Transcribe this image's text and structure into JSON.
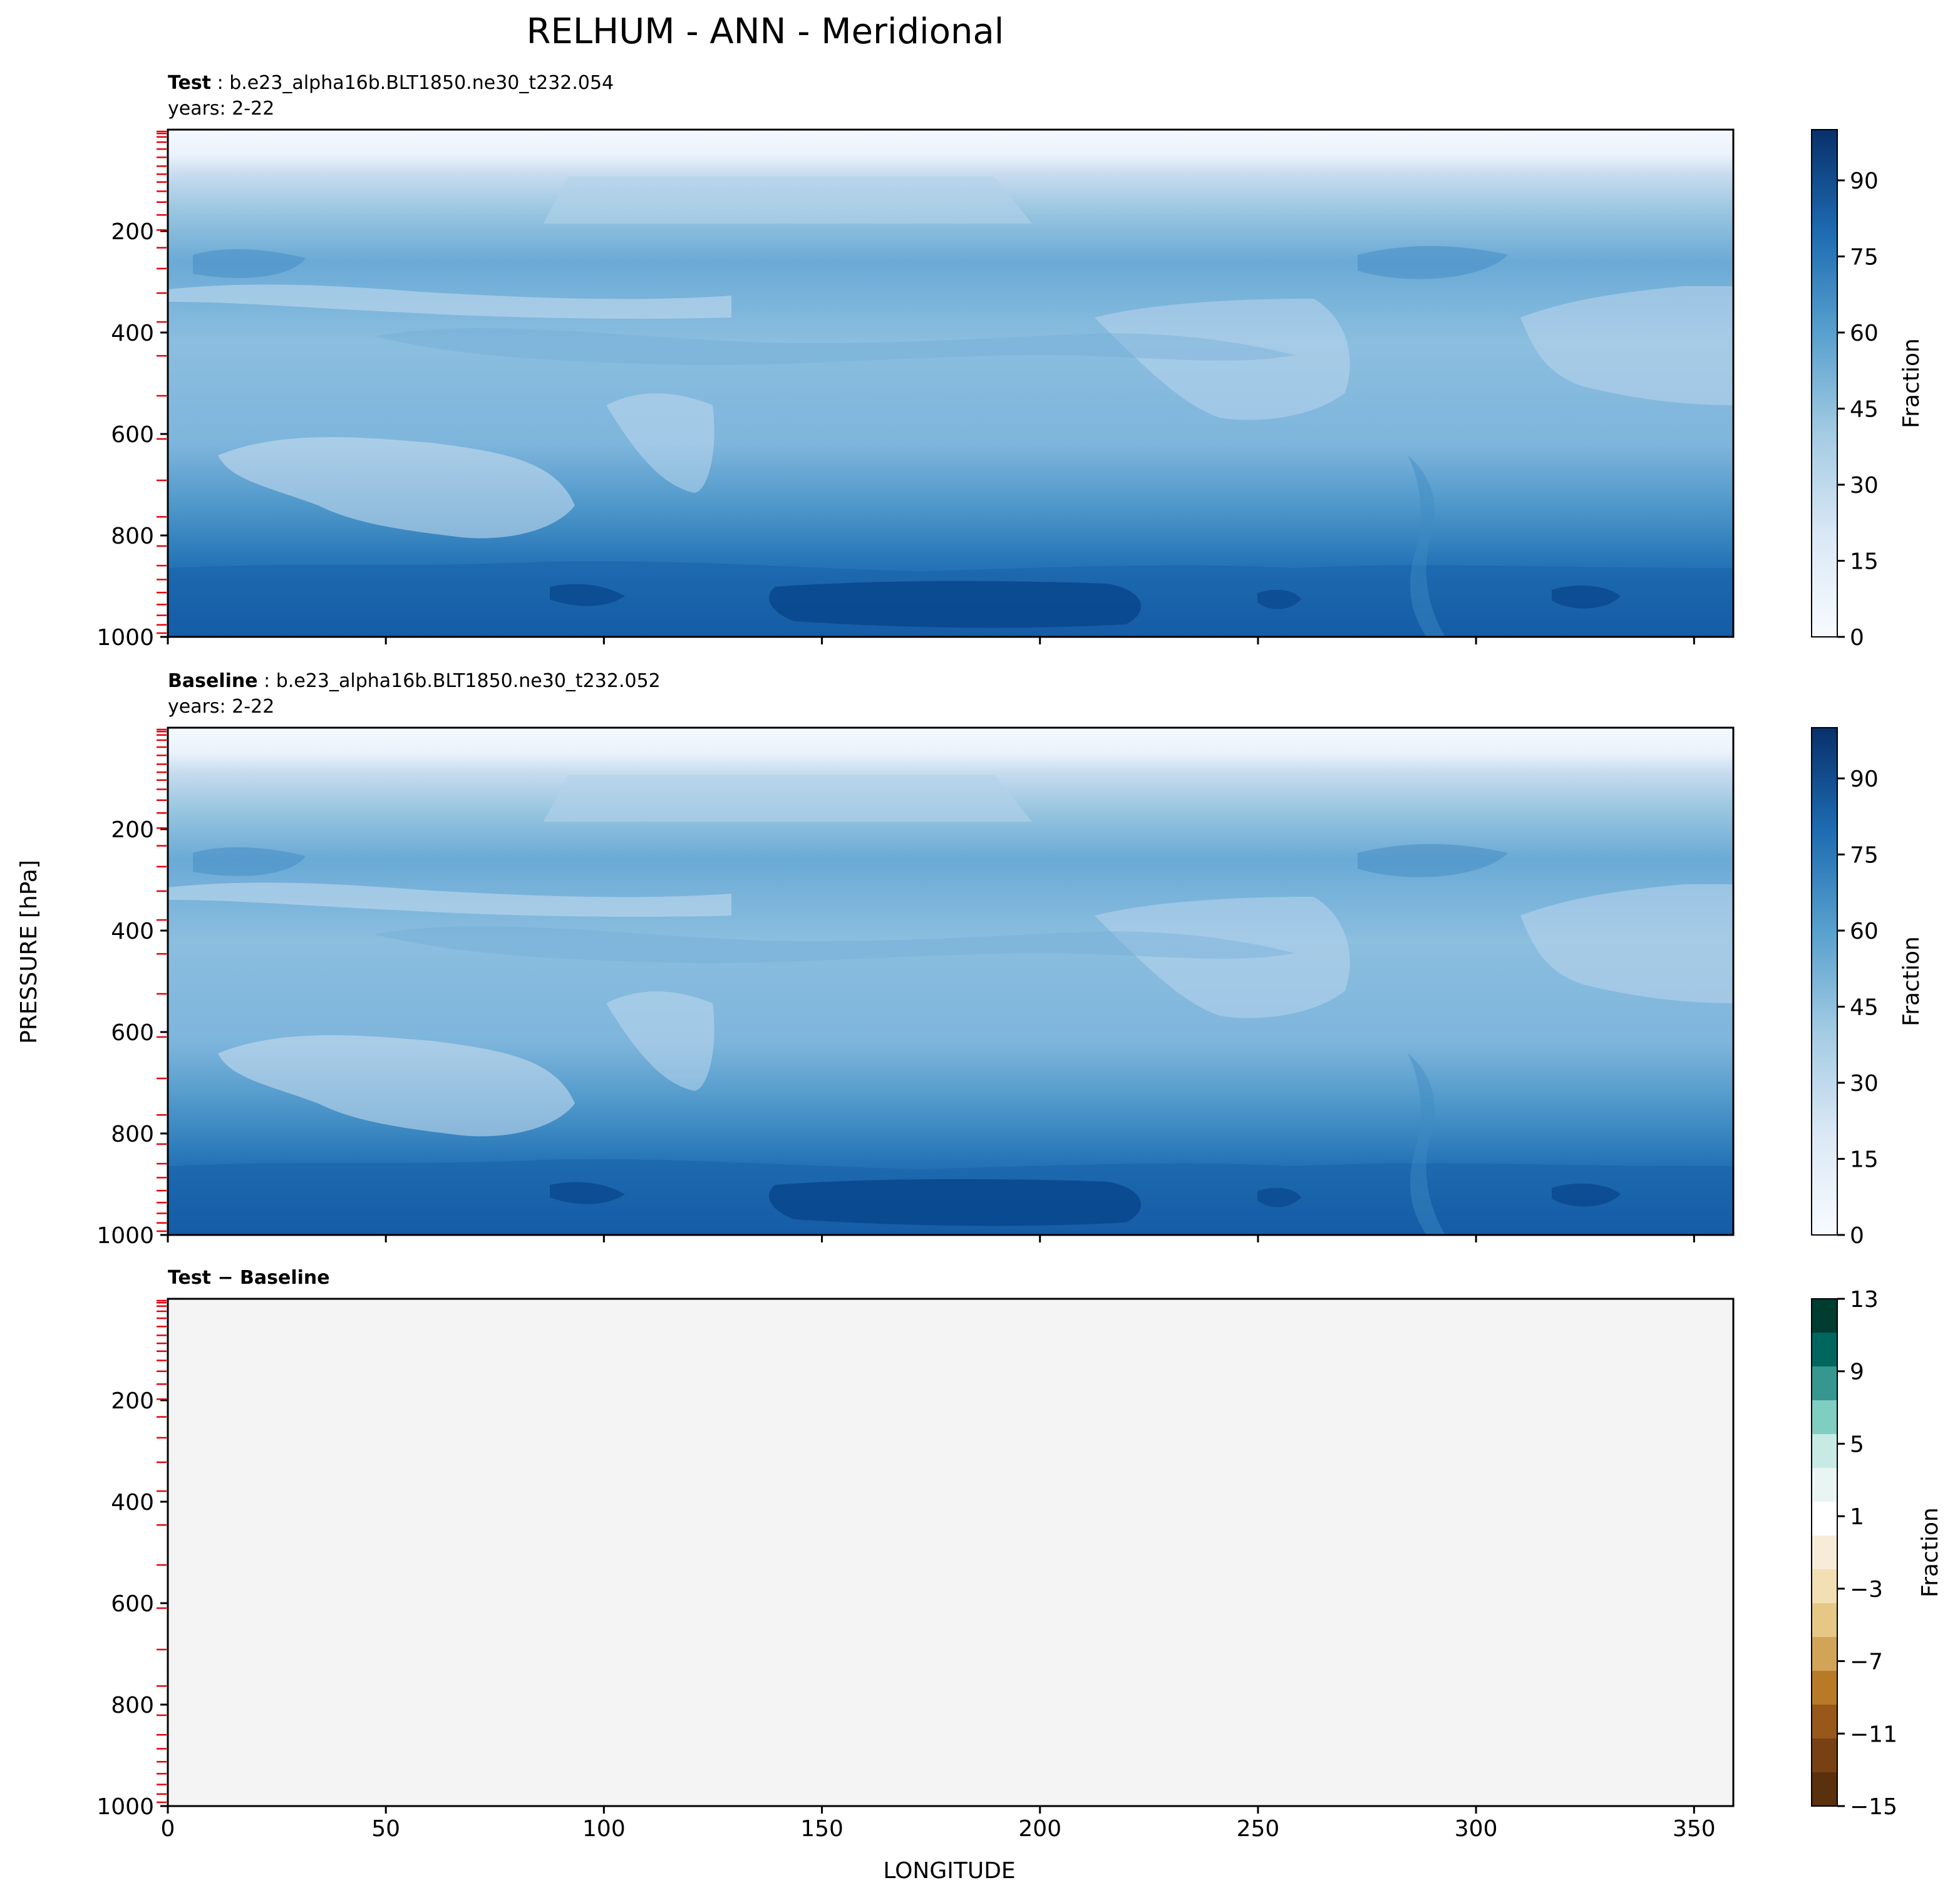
{
  "figure": {
    "title": "RELHUM - ANN - Meridional",
    "xlabel": "LONGITUDE",
    "ylabel": "PRESSURE [hPa]"
  },
  "chart_data": [
    {
      "type": "heatmap",
      "panel": "test",
      "title_bold": "Test",
      "title_rest": ": b.e23_alpha16b.BLT1850.ne30_t232.054",
      "subtitle": "years: 2-22",
      "xlim": [
        0,
        359
      ],
      "ylim": [
        1000,
        0
      ],
      "yticks": [
        "200",
        "400",
        "600",
        "800",
        "1000"
      ],
      "xticks_labeled": false,
      "colorbar": {
        "label": "Fraction",
        "ticks": [
          "0",
          "15",
          "30",
          "45",
          "60",
          "75",
          "90"
        ],
        "range": [
          0,
          100
        ],
        "colormap": "Blues"
      }
    },
    {
      "type": "heatmap",
      "panel": "baseline",
      "title_bold": "Baseline",
      "title_rest": ": b.e23_alpha16b.BLT1850.ne30_t232.052",
      "subtitle": "years: 2-22",
      "xlim": [
        0,
        359
      ],
      "ylim": [
        1000,
        0
      ],
      "yticks": [
        "200",
        "400",
        "600",
        "800",
        "1000"
      ],
      "xticks_labeled": false,
      "colorbar": {
        "label": "Fraction",
        "ticks": [
          "0",
          "15",
          "30",
          "45",
          "60",
          "75",
          "90"
        ],
        "range": [
          0,
          100
        ],
        "colormap": "Blues"
      }
    },
    {
      "type": "heatmap",
      "panel": "difference",
      "title_bold": "Test − Baseline",
      "subtitle": "",
      "xlim": [
        0,
        359
      ],
      "ylim": [
        1000,
        0
      ],
      "yticks": [
        "200",
        "400",
        "600",
        "800",
        "1000"
      ],
      "xticks": [
        "0",
        "50",
        "100",
        "150",
        "200",
        "250",
        "300",
        "350"
      ],
      "uniform_fill": "#f3f4f3",
      "colorbar": {
        "label": "Fraction",
        "ticks": [
          "13",
          "9",
          "5",
          "1",
          "−3",
          "−7",
          "−11",
          "−15"
        ],
        "colors": [
          "#003c30",
          "#01665e",
          "#35978f",
          "#80cdc1",
          "#c7eae5",
          "#e9f5f3",
          "#ffffff",
          "#f6ecd8",
          "#f2dfb4",
          "#e6c786",
          "#d1a457",
          "#b97a28",
          "#98581a",
          "#784114",
          "#5b300c"
        ],
        "colormap": "BrBG"
      }
    }
  ],
  "colors": {
    "blues": [
      "#f7fbff",
      "#e8f1fa",
      "#dae8f5",
      "#cbdef0",
      "#b9d6ea",
      "#a3cbe3",
      "#8abde0",
      "#6fadd6",
      "#57a0ce",
      "#4191c6",
      "#2f7ebc",
      "#1d6bb1",
      "#0d58a1",
      "#084a91",
      "#08306b"
    ],
    "model_level_ticks": "#e8000b"
  }
}
